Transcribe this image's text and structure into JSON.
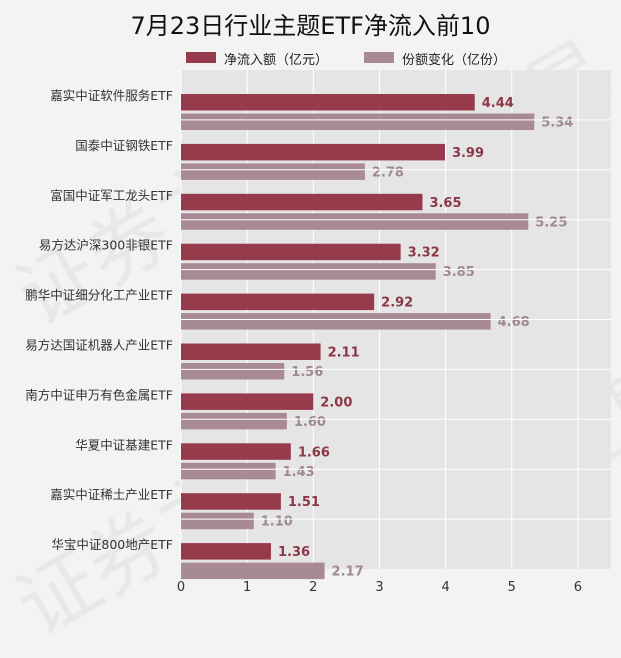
{
  "chart_data": {
    "type": "bar",
    "orientation": "horizontal",
    "title": "7月23日行业主题ETF净流入前10",
    "categories": [
      "嘉实中证软件服务ETF",
      "国泰中证钢铁ETF",
      "富国中证军工龙头ETF",
      "易方达沪深300非银ETF",
      "鹏华中证细分化工产业ETF",
      "易方达国证机器人产业ETF",
      "南方中证申万有色金属ETF",
      "华夏中证基建ETF",
      "嘉实中证稀土产业ETF",
      "华宝中证800地产ETF"
    ],
    "series": [
      {
        "name": "净流入额（亿元）",
        "values": [
          4.44,
          3.99,
          3.65,
          3.32,
          2.92,
          2.11,
          2.0,
          1.66,
          1.51,
          1.36
        ],
        "labels": [
          "4.44",
          "3.99",
          "3.65",
          "3.32",
          "2.92",
          "2.11",
          "2.00",
          "1.66",
          "1.51",
          "1.36"
        ]
      },
      {
        "name": "份额变化（亿份）",
        "values": [
          5.34,
          2.78,
          5.25,
          3.85,
          4.68,
          1.56,
          1.6,
          1.43,
          1.1,
          2.17
        ],
        "labels": [
          "5.34",
          "2.78",
          "5.25",
          "3.85",
          "4.68",
          "1.56",
          "1.60",
          "1.43",
          "1.10",
          "2.17"
        ]
      }
    ],
    "xlim": [
      0,
      6.5
    ],
    "xticks": [
      "0",
      "1",
      "2",
      "3",
      "4",
      "5",
      "6"
    ],
    "grid": true,
    "legend": "top",
    "colors": {
      "series1": "#963b4c",
      "series2": "#a88a94",
      "plot_bg": "#e5e5e5",
      "page_bg": "#f3f3f3"
    }
  },
  "watermark_text": "证券之星"
}
